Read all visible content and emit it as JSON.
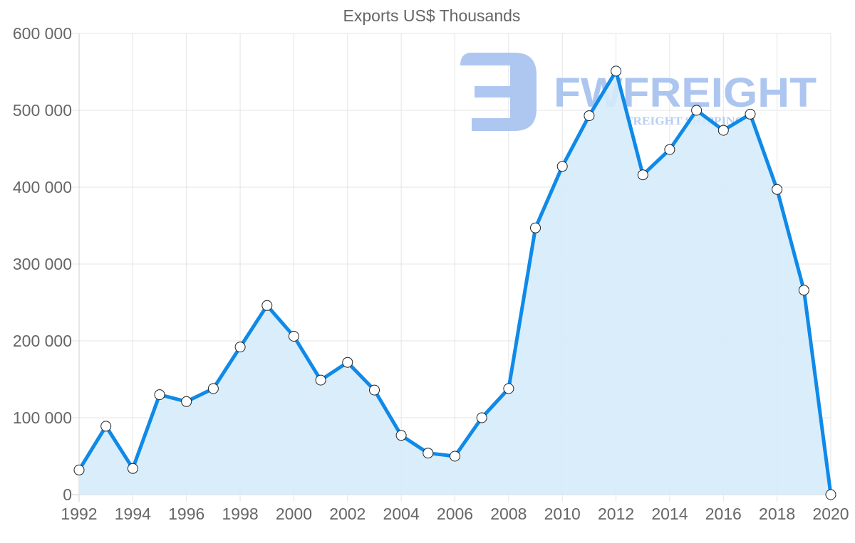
{
  "chart_data": {
    "type": "line",
    "title": "Exports US$ Thousands",
    "xlabel": "",
    "ylabel": "",
    "x": [
      1992,
      1993,
      1994,
      1995,
      1996,
      1997,
      1998,
      1999,
      2000,
      2001,
      2002,
      2003,
      2004,
      2005,
      2006,
      2007,
      2008,
      2009,
      2010,
      2011,
      2012,
      2013,
      2014,
      2015,
      2016,
      2017,
      2018,
      2019,
      2020
    ],
    "series": [
      {
        "name": "Exports US$ Thousands",
        "values": [
          32000,
          89000,
          34000,
          130000,
          121000,
          138000,
          192000,
          246000,
          206000,
          149000,
          172000,
          136000,
          77000,
          54000,
          50000,
          100000,
          138000,
          347000,
          427000,
          493000,
          551000,
          416000,
          449000,
          500000,
          474000,
          495000,
          397000,
          266000,
          0
        ],
        "line_color": "#0f8ae8",
        "fill_color": "#d6ebfb",
        "point_fill": "#ffffff",
        "point_border": "#222222"
      }
    ],
    "xlim": [
      1992,
      2020
    ],
    "ylim": [
      0,
      600000
    ],
    "y_ticks": [
      0,
      100000,
      200000,
      300000,
      400000,
      500000,
      600000
    ],
    "y_tick_labels": [
      "0",
      "100 000",
      "200 000",
      "300 000",
      "400 000",
      "500 000",
      "600 000"
    ],
    "x_ticks": [
      1992,
      1994,
      1996,
      1998,
      2000,
      2002,
      2004,
      2006,
      2008,
      2010,
      2012,
      2014,
      2016,
      2018,
      2020
    ],
    "x_tick_labels": [
      "1992",
      "1994",
      "1996",
      "1998",
      "2000",
      "2002",
      "2004",
      "2006",
      "2008",
      "2010",
      "2012",
      "2014",
      "2016",
      "2018",
      "2020"
    ],
    "grid": true,
    "legend": false,
    "filled": true
  },
  "watermark": {
    "brand": "FWFREIGHT",
    "tagline": "FREIGHT SHIPPING",
    "color": "#a9c4f0"
  }
}
